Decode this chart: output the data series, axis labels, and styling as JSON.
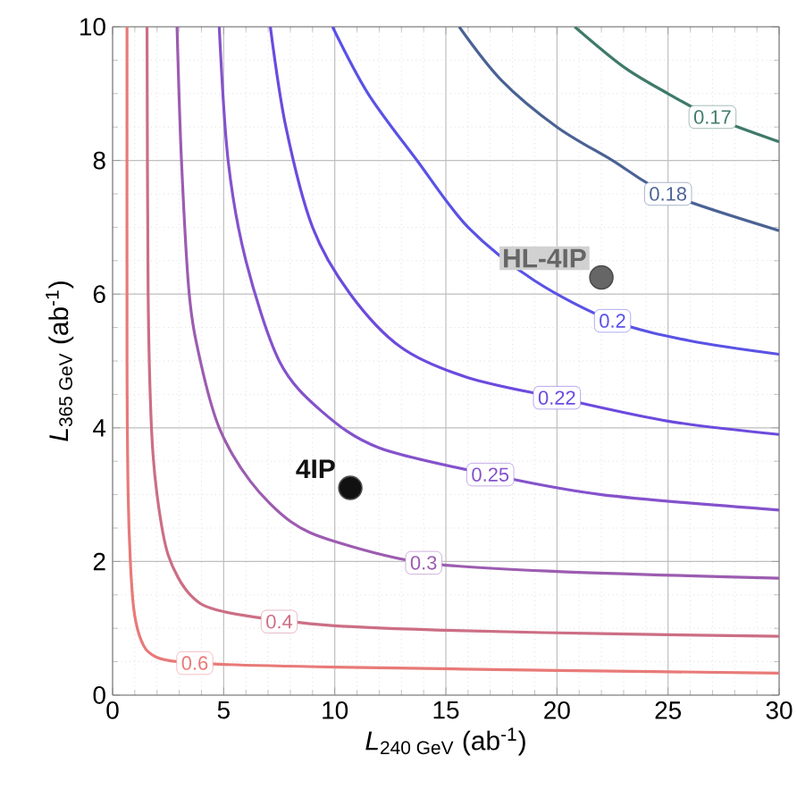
{
  "chart_data": {
    "type": "line",
    "xlabel": "*L*$_{240 GeV}$ (ab$^{-1}$)",
    "ylabel": "*L*$_{365 GeV}$ (ab$^{-1}$)",
    "xlim": [
      0,
      30
    ],
    "ylim": [
      0,
      10
    ],
    "xticks": [
      0,
      5,
      10,
      15,
      20,
      25,
      30
    ],
    "yticks": [
      0,
      2,
      4,
      6,
      8,
      10
    ],
    "grid": true,
    "marker": "none",
    "line_style": "solid",
    "series": [
      {
        "color": "#e87a78",
        "x": [
          0.65,
          0.65,
          0.7,
          0.8,
          0.95,
          1.2,
          1.6,
          2.5,
          5,
          10,
          20,
          30
        ],
        "values": [
          10,
          5,
          3,
          2,
          1.3,
          0.9,
          0.65,
          0.52,
          0.46,
          0.42,
          0.37,
          0.33
        ]
      },
      {
        "color": "#cc6e84",
        "x": [
          1.55,
          1.6,
          1.75,
          2.0,
          2.5,
          3.5,
          5,
          9.5,
          15,
          22,
          30
        ],
        "values": [
          10,
          6,
          4,
          3,
          2.1,
          1.5,
          1.25,
          1.05,
          0.97,
          0.92,
          0.88
        ]
      },
      {
        "color": "#9c5cb0",
        "x": [
          2.9,
          3.1,
          3.45,
          3.95,
          4.8,
          6.2,
          8,
          10,
          14,
          20,
          30
        ],
        "values": [
          10,
          8,
          6,
          5,
          4,
          3.2,
          2.6,
          2.3,
          1.98,
          1.85,
          1.75
        ]
      },
      {
        "color": "#8452cc",
        "x": [
          4.8,
          5.2,
          6,
          7.5,
          9.4,
          12,
          17,
          22,
          30
        ],
        "values": [
          10,
          8,
          6.5,
          5,
          4.25,
          3.7,
          3.3,
          3.0,
          2.77
        ]
      },
      {
        "color": "#6c4ade",
        "x": [
          7.1,
          7.8,
          9,
          10.7,
          13,
          16,
          20,
          25,
          30
        ],
        "values": [
          10,
          8.5,
          7,
          6,
          5.2,
          4.75,
          4.45,
          4.1,
          3.9
        ]
      },
      {
        "color": "#5a52e6",
        "x": [
          9.9,
          11.5,
          13.7,
          16,
          19,
          22.5,
          26,
          30
        ],
        "values": [
          10,
          9,
          8,
          7,
          6.2,
          5.6,
          5.3,
          5.1
        ]
      },
      {
        "color": "#4a6294",
        "x": [
          15.6,
          17.5,
          20,
          22.5,
          25,
          30
        ],
        "values": [
          10,
          9.2,
          8.5,
          8,
          7.5,
          6.95
        ]
      },
      {
        "color": "#3e7a6a",
        "x": [
          20.8,
          23,
          25,
          27,
          30
        ],
        "values": [
          10,
          9.4,
          9.0,
          8.65,
          8.28
        ]
      },
      {
        "type": "scatter",
        "name": "4IP",
        "color": "#111111",
        "marker": "circle",
        "x": [
          10.7
        ],
        "values": [
          3.1
        ]
      },
      {
        "type": "scatter",
        "name": "HL-4IP",
        "color": "#666666",
        "marker": "circle",
        "x": [
          22
        ],
        "values": [
          6.25
        ]
      }
    ],
    "annotations": [
      {
        "text": "0.6",
        "x": 3.7,
        "y": 0.48
      },
      {
        "text": "0.4",
        "x": 7.5,
        "y": 1.1
      },
      {
        "text": "0.3",
        "x": 14,
        "y": 1.98
      },
      {
        "text": "0.25",
        "x": 17,
        "y": 3.3
      },
      {
        "text": "0.22",
        "x": 20,
        "y": 4.45
      },
      {
        "text": "0.2",
        "x": 22.5,
        "y": 5.6
      },
      {
        "text": "0.18",
        "x": 25,
        "y": 7.5
      },
      {
        "text": "0.17",
        "x": 27,
        "y": 8.65
      }
    ]
  }
}
